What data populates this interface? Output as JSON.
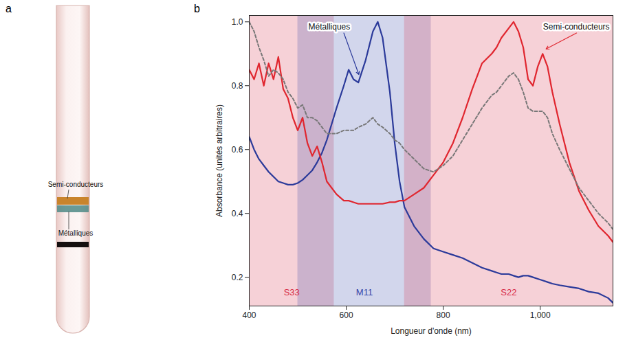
{
  "panel_a": {
    "letter": "a",
    "labels": [
      "Semi-conducteurs",
      "Métalliques"
    ]
  },
  "chart_data": {
    "letter": "b",
    "type": "line",
    "xlabel": "Longueur d'onde (nm)",
    "ylabel": "Absorbance (unités arbitraires)",
    "xlim": [
      400,
      1150
    ],
    "ylim": [
      0.11,
      1.02
    ],
    "xticks": [
      400,
      600,
      800,
      {
        "value": 1000,
        "label": "1,000"
      }
    ],
    "yticks": [
      0.2,
      0.4,
      0.6,
      0.8,
      {
        "value": 1,
        "label": "1.0"
      }
    ],
    "regions": [
      {
        "name": "S33",
        "from": 400,
        "to": 575,
        "color": "#d62c48"
      },
      {
        "name": "M11",
        "from": 500,
        "to": 775,
        "color": "#3344aa"
      },
      {
        "name": "S22",
        "from": 720,
        "to": 1150,
        "color": "#d62c48"
      }
    ],
    "x": [
      400,
      410,
      420,
      430,
      440,
      450,
      460,
      470,
      480,
      490,
      500,
      510,
      520,
      530,
      540,
      550,
      560,
      580,
      595,
      605,
      615,
      625,
      640,
      655,
      665,
      675,
      690,
      700,
      710,
      720,
      740,
      760,
      780,
      800,
      820,
      840,
      860,
      880,
      900,
      910,
      920,
      935,
      945,
      955,
      965,
      975,
      985,
      995,
      1005,
      1015,
      1025,
      1040,
      1060,
      1080,
      1100,
      1120,
      1140,
      1150
    ],
    "series": [
      {
        "name": "Métalliques",
        "color": "#2b3a9a",
        "line_style": "solid",
        "values": [
          0.64,
          0.6,
          0.57,
          0.55,
          0.53,
          0.515,
          0.5,
          0.495,
          0.49,
          0.49,
          0.495,
          0.505,
          0.52,
          0.535,
          0.56,
          0.59,
          0.63,
          0.73,
          0.8,
          0.85,
          0.82,
          0.81,
          0.88,
          0.97,
          1.0,
          0.95,
          0.78,
          0.62,
          0.5,
          0.42,
          0.36,
          0.32,
          0.29,
          0.28,
          0.27,
          0.26,
          0.245,
          0.23,
          0.22,
          0.215,
          0.21,
          0.21,
          0.205,
          0.2,
          0.205,
          0.205,
          0.2,
          0.195,
          0.19,
          0.185,
          0.18,
          0.175,
          0.17,
          0.165,
          0.155,
          0.15,
          0.135,
          0.12
        ]
      },
      {
        "name": "Semi-conducteurs",
        "color": "#e0262f",
        "line_style": "solid",
        "values": [
          0.85,
          0.82,
          0.87,
          0.8,
          0.87,
          0.82,
          0.89,
          0.79,
          0.76,
          0.7,
          0.66,
          0.7,
          0.62,
          0.58,
          0.61,
          0.56,
          0.5,
          0.46,
          0.44,
          0.44,
          0.435,
          0.43,
          0.43,
          0.43,
          0.43,
          0.43,
          0.435,
          0.435,
          0.44,
          0.44,
          0.46,
          0.48,
          0.52,
          0.56,
          0.62,
          0.7,
          0.79,
          0.87,
          0.9,
          0.92,
          0.95,
          0.98,
          1.0,
          0.97,
          0.92,
          0.82,
          0.8,
          0.86,
          0.9,
          0.86,
          0.78,
          0.68,
          0.56,
          0.47,
          0.41,
          0.36,
          0.33,
          0.31
        ]
      },
      {
        "color": "#777777",
        "line_style": "dashed",
        "values": [
          1.0,
          0.97,
          0.92,
          0.88,
          0.83,
          0.85,
          0.84,
          0.82,
          0.78,
          0.76,
          0.73,
          0.74,
          0.7,
          0.7,
          0.69,
          0.67,
          0.65,
          0.65,
          0.66,
          0.66,
          0.66,
          0.67,
          0.68,
          0.7,
          0.68,
          0.67,
          0.65,
          0.63,
          0.62,
          0.6,
          0.57,
          0.54,
          0.53,
          0.55,
          0.58,
          0.63,
          0.68,
          0.73,
          0.77,
          0.78,
          0.8,
          0.83,
          0.84,
          0.82,
          0.78,
          0.73,
          0.72,
          0.72,
          0.72,
          0.7,
          0.65,
          0.6,
          0.54,
          0.48,
          0.44,
          0.4,
          0.37,
          0.35
        ]
      }
    ]
  }
}
